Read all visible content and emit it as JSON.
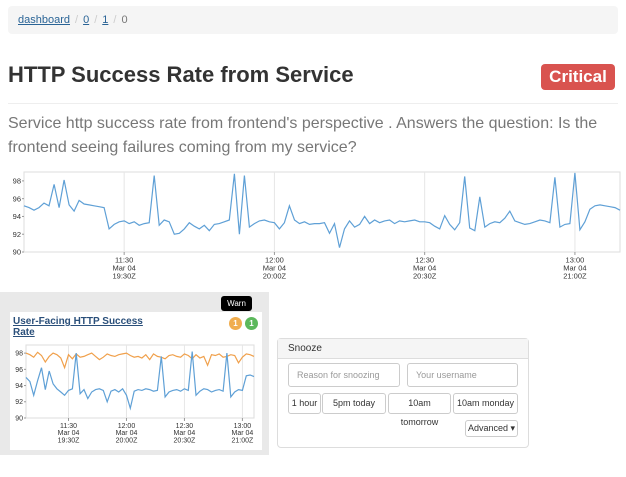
{
  "breadcrumb": {
    "items": [
      "dashboard",
      "0",
      "1",
      "0"
    ]
  },
  "header": {
    "title": "HTTP Success Rate from Service",
    "status": "Critical"
  },
  "description": "Service http success rate from frontend's perspective . Answers the question: Is the frontend seeing failures coming from my service?",
  "main_chart": {
    "type": "line",
    "color": "#5fa0d6",
    "grid": true,
    "xlim": [
      0,
      119
    ],
    "ylim": [
      90,
      99
    ],
    "yticks": [
      90,
      92,
      94,
      96,
      98
    ],
    "xticks": [
      {
        "value": 20,
        "label": [
          "11:30",
          "Mar 04",
          "19:30Z"
        ]
      },
      {
        "value": 50,
        "label": [
          "12:00",
          "Mar 04",
          "20:00Z"
        ]
      },
      {
        "value": 80,
        "label": [
          "12:30",
          "Mar 04",
          "20:30Z"
        ]
      },
      {
        "value": 110,
        "label": [
          "13:00",
          "Mar 04",
          "21:00Z"
        ]
      }
    ],
    "values": [
      95.2,
      95,
      94.7,
      95,
      95.5,
      95.2,
      97.6,
      95,
      98.1,
      95.3,
      94.6,
      95.8,
      95.4,
      95.3,
      95.2,
      95.1,
      95,
      92.6,
      93.1,
      93.4,
      93.5,
      93.2,
      93.4,
      93,
      93.2,
      93.3,
      98.6,
      93,
      93.6,
      93.4,
      92,
      92.1,
      92.6,
      93.3,
      92.9,
      92.6,
      93,
      92.4,
      93.1,
      93.2,
      93.4,
      93.6,
      98.8,
      92,
      98.6,
      92.8,
      93.2,
      93.5,
      93.6,
      93.4,
      93.3,
      92.6,
      93.3,
      95.2,
      93.6,
      93.2,
      93.4,
      93.1,
      93.2,
      93.2,
      93.3,
      92.1,
      93.2,
      90.5,
      92.6,
      93.5,
      92.8,
      93.1,
      94,
      93.2,
      93.6,
      93.3,
      93.5,
      93.6,
      93.2,
      93.5,
      93.4,
      93.5,
      93.6,
      93.4,
      93.4,
      93.3,
      92.9,
      92.6,
      94.1,
      93.1,
      92.5,
      93.3,
      98.5,
      92.7,
      92.4,
      96.2,
      92.8,
      93.2,
      93.4,
      93.3,
      93.8,
      94.6,
      93.5,
      93.3,
      93.1,
      93.2,
      93.4,
      93.6,
      93.5,
      93.3,
      98.4,
      92.8,
      93.1,
      93.2,
      98.9,
      92.5,
      93.4,
      94.8,
      95.2,
      95.3,
      95.2,
      95.1,
      95,
      94.7
    ]
  },
  "panel": {
    "tooltip": "Warn",
    "badges": [
      "1",
      "1"
    ],
    "chart": {
      "type": "line",
      "title": "User-Facing HTTP Success Rate",
      "grid": true,
      "xlim": [
        0,
        59
      ],
      "ylim": [
        90,
        99
      ],
      "yticks": [
        90,
        92,
        94,
        96,
        98
      ],
      "xticks": [
        {
          "value": 11,
          "label": [
            "11:30",
            "Mar 04",
            "19:30Z"
          ]
        },
        {
          "value": 26,
          "label": [
            "12:00",
            "Mar 04",
            "20:00Z"
          ]
        },
        {
          "value": 41,
          "label": [
            "12:30",
            "Mar 04",
            "20:30Z"
          ]
        },
        {
          "value": 56,
          "label": [
            "13:00",
            "Mar 04",
            "21:00Z"
          ]
        }
      ],
      "series": [
        {
          "color": "#f0a04b",
          "values": [
            98,
            97.8,
            97.5,
            98.1,
            97.7,
            96.9,
            97.6,
            98,
            97.8,
            97.4,
            96.2,
            97.8,
            97.3,
            97.9,
            97.5,
            97.6,
            97.8,
            98,
            97.6,
            97.2,
            97.5,
            97.9,
            97.7,
            97.6,
            97.8,
            97.9,
            98,
            97.7,
            97.5,
            97.6,
            97.4,
            97.8,
            97.2,
            97.9,
            97.6,
            97.5,
            97.3,
            97.7,
            97.8,
            97.6,
            97.5,
            97.9,
            97.7,
            97.3,
            97.8,
            97.4,
            97.6,
            96.5,
            97.8,
            97.7,
            97.9,
            97.5,
            97.6,
            97.8,
            97.7,
            96.8,
            97.5,
            97.9,
            97.8,
            97.6
          ]
        },
        {
          "color": "#5fa0d6",
          "values": [
            95,
            94.5,
            92.8,
            94.6,
            96.2,
            93.5,
            95.8,
            94.2,
            93.6,
            93.2,
            92.8,
            93.4,
            93.6,
            98,
            93,
            93.5,
            92.4,
            93.2,
            93.5,
            93.6,
            93.4,
            92,
            93.3,
            93.5,
            93.2,
            93.6,
            92.8,
            91.2,
            93.3,
            93.5,
            93.4,
            93.6,
            93.5,
            93.3,
            93.4,
            97.6,
            92.6,
            93.2,
            93.4,
            93.5,
            93.3,
            93.6,
            93.4,
            98.2,
            92.8,
            93.3,
            93.6,
            93.5,
            93.2,
            93.4,
            93.5,
            93.3,
            98,
            92.6,
            93.2,
            93.5,
            93.4,
            95.2,
            95.3,
            95.1
          ]
        }
      ]
    }
  },
  "snooze": {
    "title": "Snooze",
    "inputs": [
      "Reason for snoozing",
      "Your username"
    ],
    "buttons": [
      "1 hour",
      "5pm today",
      "10am tomorrow",
      "10am monday"
    ],
    "advanced": "Advanced"
  }
}
